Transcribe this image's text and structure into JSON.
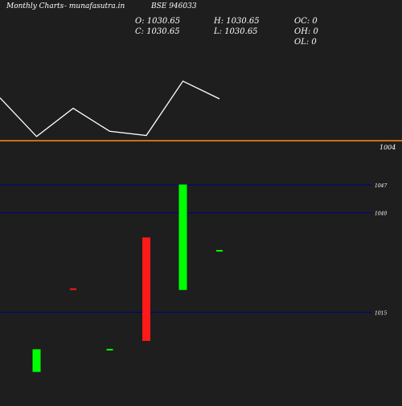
{
  "header": {
    "brand": "Monthly Charts",
    "site": "- munafasutra.in",
    "symbol": "BSE 946033",
    "open": "O: 1030.65",
    "high": "H: 1030.65",
    "oc": "OC: 0",
    "close": "C: 1030.65",
    "low": "L: 1030.65",
    "oh": "OH: 0",
    "ol": "OL: 0"
  },
  "colors": {
    "background": "#1e1e1e",
    "line": "#ffffff",
    "reference_line": "#ff8c1a",
    "up": "#00ff00",
    "down": "#ff1a1a",
    "grid": "#00008b"
  },
  "chart_data": [
    {
      "type": "line",
      "title": "",
      "series": [
        {
          "x": [
            0,
            1,
            2,
            3,
            4,
            5,
            6
          ],
          "values": [
            1045,
            1008,
            1035,
            1013,
            1009,
            1061,
            1044
          ]
        }
      ],
      "reference_line": {
        "value": 1004,
        "label": "1004"
      },
      "ylim": [
        993,
        1070
      ],
      "xlim": [
        0,
        6
      ]
    },
    {
      "type": "candlestick",
      "title": "",
      "gridlines": [
        {
          "value": 1047,
          "label": "1047"
        },
        {
          "value": 1040,
          "label": "1040"
        },
        {
          "value": 1015,
          "label": "1015"
        }
      ],
      "candles": [
        {
          "x": 1,
          "open": 1000.0,
          "close": 1005.7,
          "high": 1005.7,
          "low": 1000.0,
          "direction": "up"
        },
        {
          "x": 2,
          "open": 1021.0,
          "close": 1020.6,
          "high": 1021.0,
          "low": 1020.6,
          "direction": "down"
        },
        {
          "x": 3,
          "open": 1005.8,
          "close": 1005.8,
          "high": 1005.8,
          "low": 1005.8,
          "direction": "up"
        },
        {
          "x": 4,
          "open": 1033.8,
          "close": 1007.8,
          "high": 1033.8,
          "low": 1007.8,
          "direction": "down"
        },
        {
          "x": 5,
          "open": 1020.6,
          "close": 1047.1,
          "high": 1047.1,
          "low": 1020.6,
          "direction": "up"
        },
        {
          "x": 6,
          "open": 1030.65,
          "close": 1030.65,
          "high": 1030.65,
          "low": 1030.65,
          "direction": "up"
        }
      ]
    }
  ]
}
